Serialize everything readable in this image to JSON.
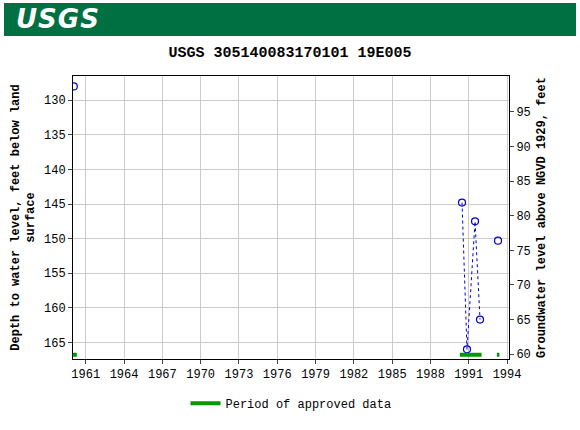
{
  "chart_data": {
    "type": "scatter",
    "logo": "USGS",
    "title": "USGS 305140083170101 19E005",
    "y_label": "Depth to water level, feet below land\nsurface",
    "y2_label": "Groundwater level above NGVD 1929, feet",
    "x": [
      1960.06,
      1975.0,
      1990.47,
      1990.86,
      1991.49,
      1991.88,
      1992.6,
      1993.29
    ],
    "series": [
      {
        "color": "#0000cc",
        "marker": "open_circle",
        "line_style": "dotted",
        "values": [
          128.0,
          null,
          144.8,
          166.0,
          147.5,
          161.7,
          null,
          150.3
        ]
      },
      {
        "name": "Period of approved data",
        "color": "#009900",
        "type": "period",
        "periods": [
          [
            1960.0,
            1960.3
          ],
          [
            1990.3,
            1992.0
          ],
          [
            1993.2,
            1993.4
          ]
        ]
      }
    ],
    "xlim": [
      1960.0,
      1994.15
    ],
    "xticks": [
      1961,
      1964,
      1967,
      1970,
      1973,
      1976,
      1979,
      1982,
      1985,
      1988,
      1991,
      1994
    ],
    "ylim": [
      167.4,
      126.5
    ],
    "yticks": [
      130,
      135,
      140,
      145,
      150,
      155,
      160,
      165
    ],
    "y2lim": [
      59.3,
      100.2
    ],
    "y2ticks": [
      60,
      65,
      70,
      75,
      80,
      85,
      90,
      95
    ],
    "grid": true,
    "legend": "bottom"
  }
}
